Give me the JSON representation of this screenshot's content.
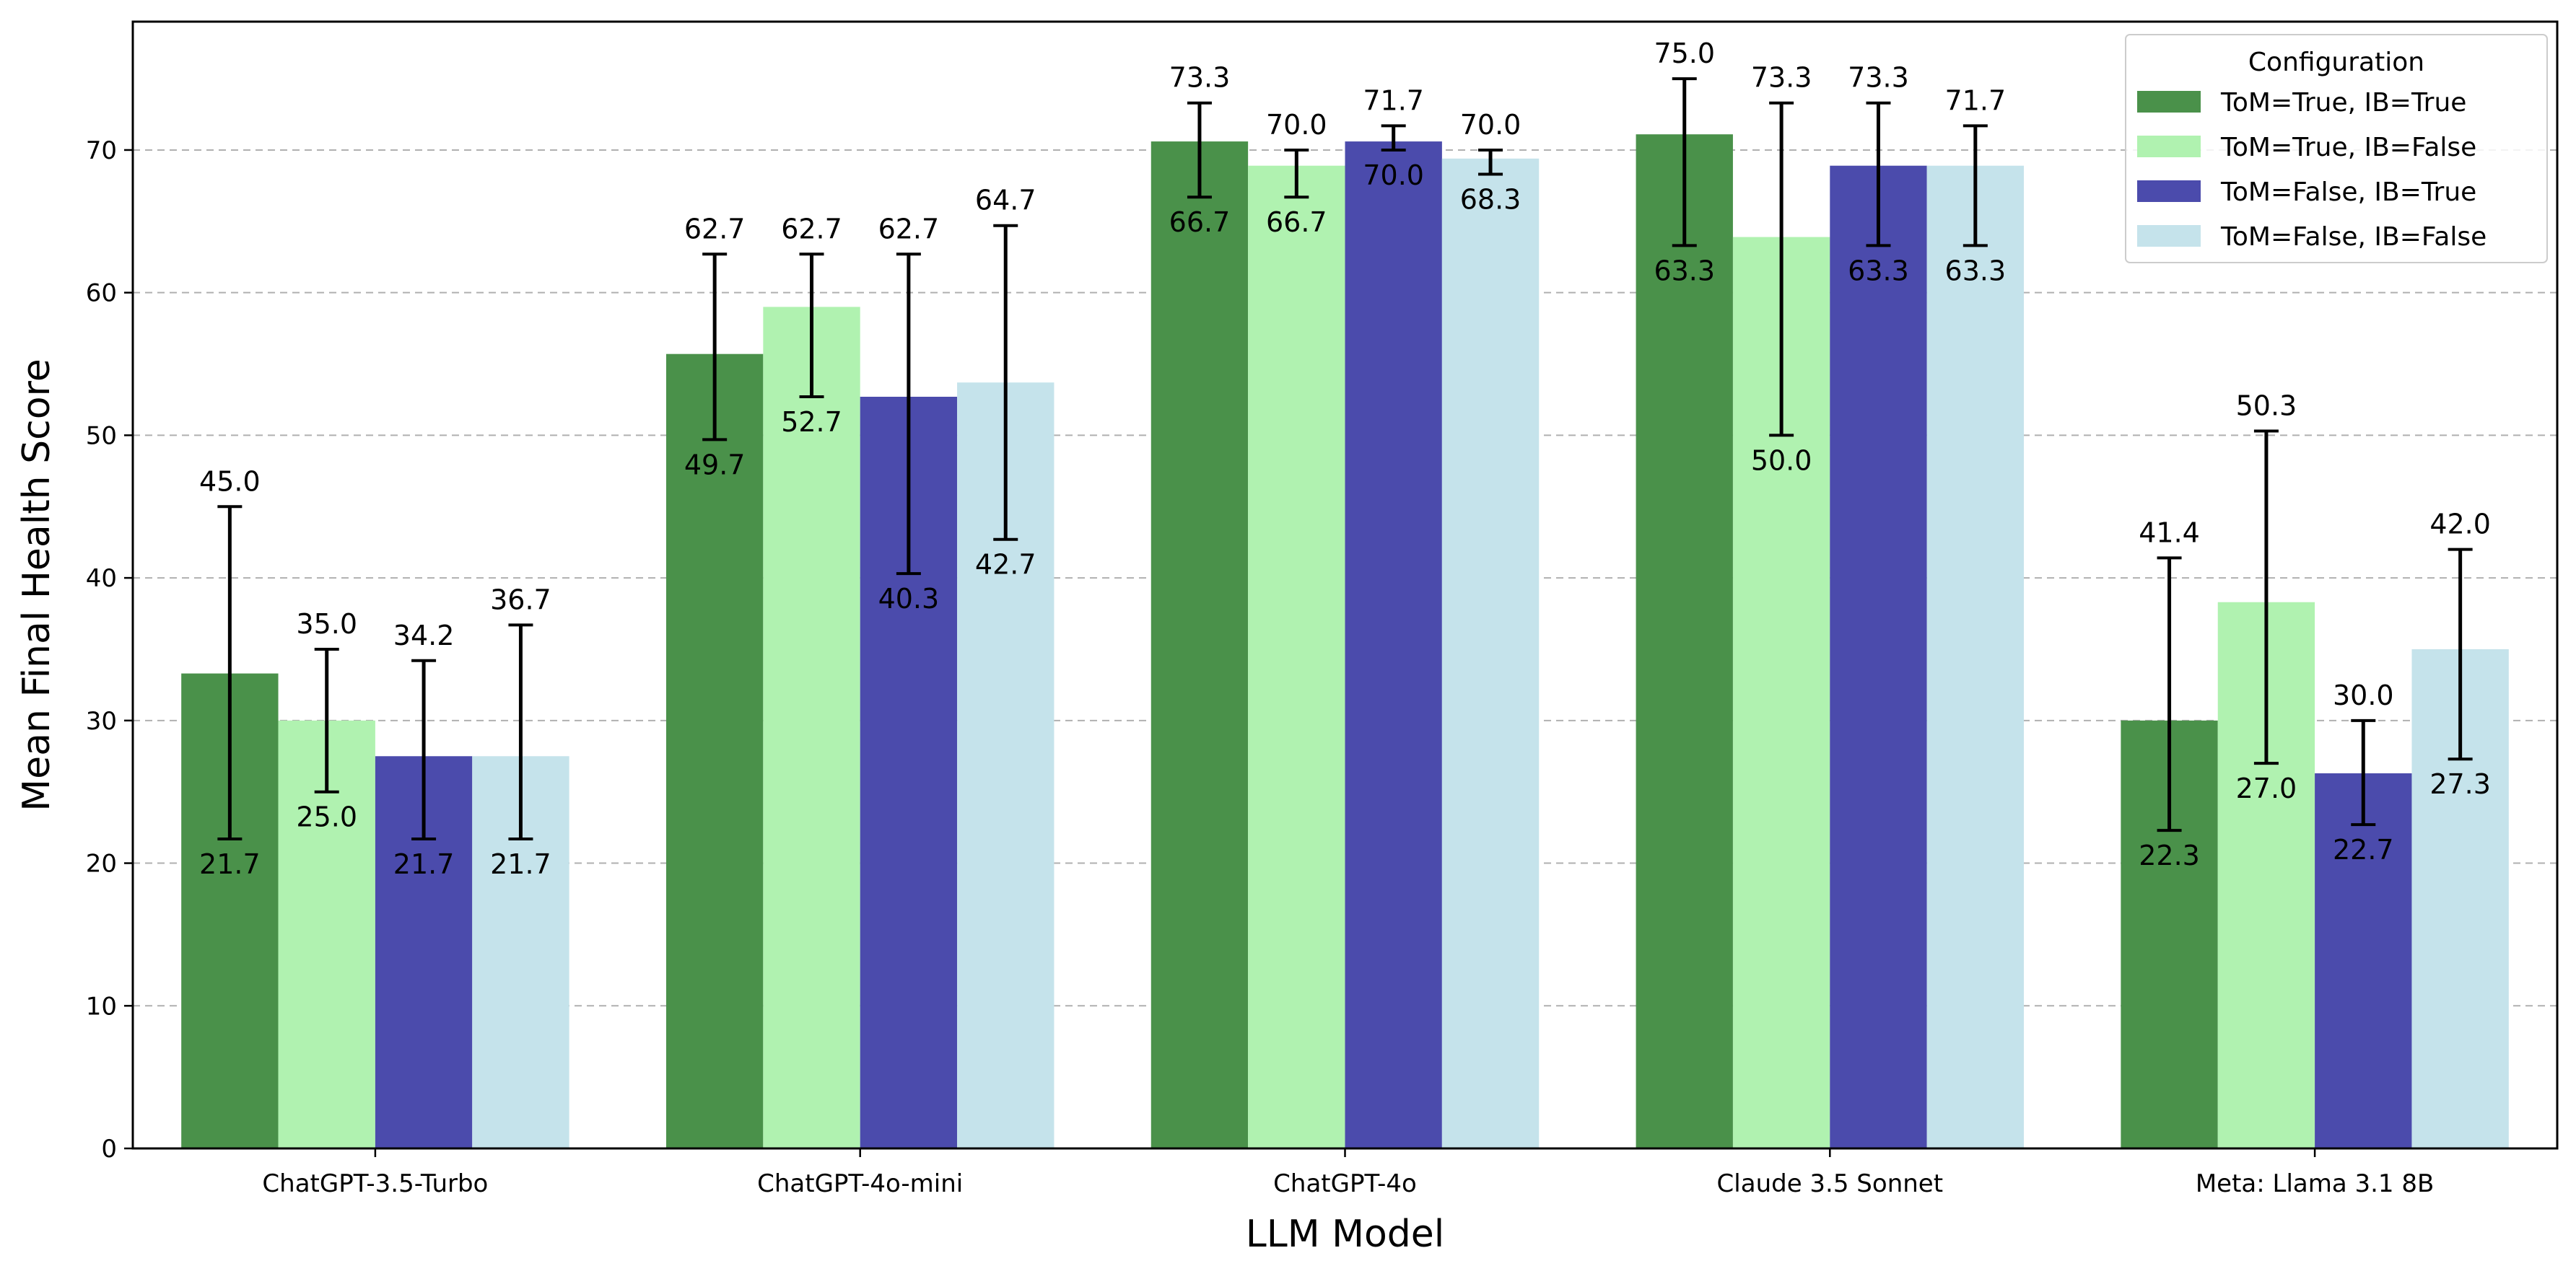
{
  "chart_data": {
    "type": "bar",
    "title": "",
    "xlabel": "LLM Model",
    "ylabel": "Mean Final Health Score",
    "ylim": [
      0,
      79
    ],
    "yticks": [
      0,
      10,
      20,
      30,
      40,
      50,
      60,
      70
    ],
    "grid": "horizontal-dashed",
    "categories": [
      "ChatGPT-3.5-Turbo",
      "ChatGPT-4o-mini",
      "ChatGPT-4o",
      "Claude 3.5 Sonnet",
      "Meta: Llama 3.1 8B"
    ],
    "legend": {
      "title": "Configuration",
      "position": "top-right"
    },
    "series": [
      {
        "name": "ToM=True, IB=True",
        "color": "#4a914a",
        "values": [
          33.3,
          55.7,
          70.6,
          71.1,
          30.0
        ],
        "upper": [
          45.0,
          62.7,
          73.3,
          75.0,
          41.4
        ],
        "lower": [
          21.7,
          49.7,
          66.7,
          63.3,
          22.3
        ],
        "upper_labels": [
          "45.0",
          "62.7",
          "73.3",
          "75.0",
          "41.4"
        ],
        "lower_labels": [
          "21.7",
          "49.7",
          "66.7",
          "63.3",
          "22.3"
        ]
      },
      {
        "name": "ToM=True, IB=False",
        "color": "#b0f2b0",
        "values": [
          30.0,
          59.0,
          68.9,
          63.9,
          38.3
        ],
        "upper": [
          35.0,
          62.7,
          70.0,
          73.3,
          50.3
        ],
        "lower": [
          25.0,
          52.7,
          66.7,
          50.0,
          27.0
        ],
        "upper_labels": [
          "35.0",
          "62.7",
          "70.0",
          "73.3",
          "50.3"
        ],
        "lower_labels": [
          "25.0",
          "52.7",
          "66.7",
          "50.0",
          "27.0"
        ]
      },
      {
        "name": "ToM=False, IB=True",
        "color": "#4b4bac",
        "values": [
          27.5,
          52.7,
          70.6,
          68.9,
          26.3
        ],
        "upper": [
          34.2,
          62.7,
          71.7,
          73.3,
          30.0
        ],
        "lower": [
          21.7,
          40.3,
          70.0,
          63.3,
          22.7
        ],
        "upper_labels": [
          "34.2",
          "62.7",
          "71.7",
          "73.3",
          "30.0"
        ],
        "lower_labels": [
          "21.7",
          "40.3",
          "70.0",
          "63.3",
          "22.7"
        ]
      },
      {
        "name": "ToM=False, IB=False",
        "color": "#c5e3eb",
        "values": [
          27.5,
          53.7,
          69.4,
          68.9,
          35.0
        ],
        "upper": [
          36.7,
          64.7,
          70.0,
          71.7,
          42.0
        ],
        "lower": [
          21.7,
          42.7,
          68.3,
          63.3,
          27.3
        ],
        "upper_labels": [
          "36.7",
          "64.7",
          "70.0",
          "71.7",
          "42.0"
        ],
        "lower_labels": [
          "21.7",
          "42.7",
          "68.3",
          "63.3",
          "27.3"
        ]
      }
    ]
  }
}
